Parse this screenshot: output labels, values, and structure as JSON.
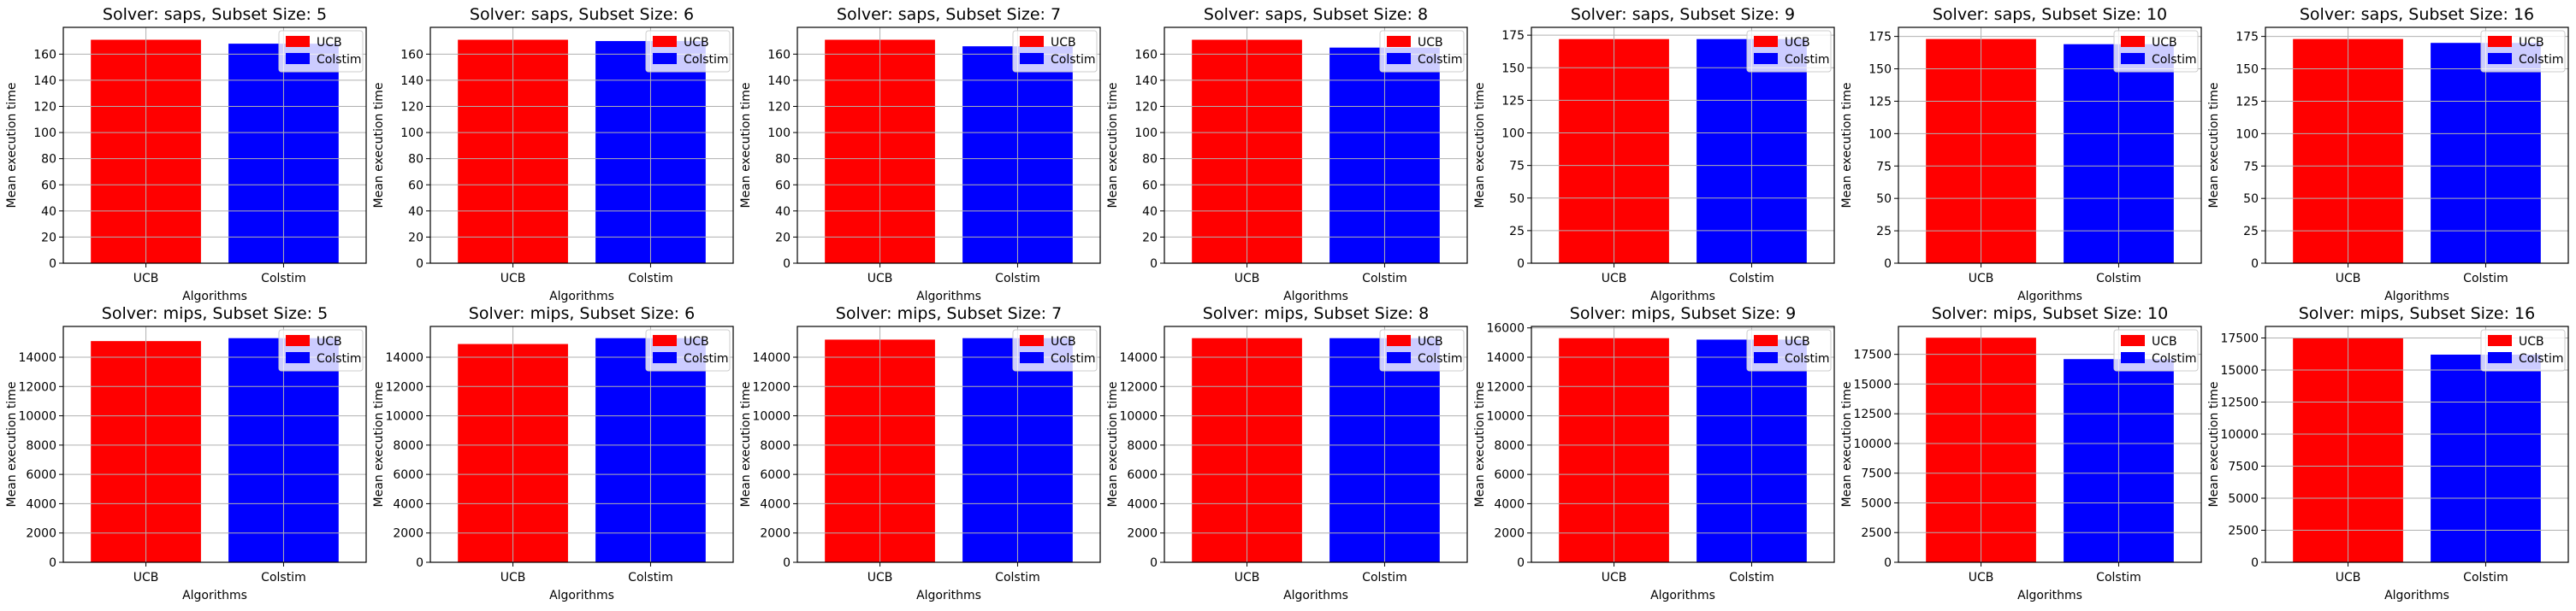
{
  "colors": {
    "UCB": "#ff0000",
    "Colstim": "#0000ff",
    "grid": "#b0b0b0"
  },
  "chart_data": [
    {
      "type": "bar",
      "title": "Solver: saps, Subset Size: 5",
      "xlabel": "Algorithms",
      "ylabel": "Mean execution time",
      "categories": [
        "UCB",
        "Colstim"
      ],
      "values": [
        171,
        168
      ],
      "ylim": [
        0,
        180.5
      ],
      "yticks": [
        0,
        20,
        40,
        60,
        80,
        100,
        120,
        140,
        160
      ],
      "legend": {
        "entries": [
          "UCB",
          "Colstim"
        ],
        "loc": "upper right"
      },
      "grid": true
    },
    {
      "type": "bar",
      "title": "Solver: saps, Subset Size: 6",
      "xlabel": "Algorithms",
      "ylabel": "Mean execution time",
      "categories": [
        "UCB",
        "Colstim"
      ],
      "values": [
        171,
        170
      ],
      "ylim": [
        0,
        180.5
      ],
      "yticks": [
        0,
        20,
        40,
        60,
        80,
        100,
        120,
        140,
        160
      ],
      "legend": {
        "entries": [
          "UCB",
          "Colstim"
        ],
        "loc": "upper right"
      },
      "grid": true
    },
    {
      "type": "bar",
      "title": "Solver: saps, Subset Size: 7",
      "xlabel": "Algorithms",
      "ylabel": "Mean execution time",
      "categories": [
        "UCB",
        "Colstim"
      ],
      "values": [
        171,
        166
      ],
      "ylim": [
        0,
        180.5
      ],
      "yticks": [
        0,
        20,
        40,
        60,
        80,
        100,
        120,
        140,
        160
      ],
      "legend": {
        "entries": [
          "UCB",
          "Colstim"
        ],
        "loc": "upper right"
      },
      "grid": true
    },
    {
      "type": "bar",
      "title": "Solver: saps, Subset Size: 8",
      "xlabel": "Algorithms",
      "ylabel": "Mean execution time",
      "categories": [
        "UCB",
        "Colstim"
      ],
      "values": [
        171,
        165
      ],
      "ylim": [
        0,
        180.5
      ],
      "yticks": [
        0,
        20,
        40,
        60,
        80,
        100,
        120,
        140,
        160
      ],
      "legend": {
        "entries": [
          "UCB",
          "Colstim"
        ],
        "loc": "upper right"
      },
      "grid": true
    },
    {
      "type": "bar",
      "title": "Solver: saps, Subset Size: 9",
      "xlabel": "Algorithms",
      "ylabel": "Mean execution time",
      "categories": [
        "UCB",
        "Colstim"
      ],
      "values": [
        172,
        172
      ],
      "ylim": [
        0,
        181
      ],
      "yticks": [
        0,
        25,
        50,
        75,
        100,
        125,
        150,
        175
      ],
      "legend": {
        "entries": [
          "UCB",
          "Colstim"
        ],
        "loc": "upper right"
      },
      "grid": true
    },
    {
      "type": "bar",
      "title": "Solver: saps, Subset Size: 10",
      "xlabel": "Algorithms",
      "ylabel": "Mean execution time",
      "categories": [
        "UCB",
        "Colstim"
      ],
      "values": [
        173,
        169
      ],
      "ylim": [
        0,
        182
      ],
      "yticks": [
        0,
        25,
        50,
        75,
        100,
        125,
        150,
        175
      ],
      "legend": {
        "entries": [
          "UCB",
          "Colstim"
        ],
        "loc": "upper right"
      },
      "grid": true
    },
    {
      "type": "bar",
      "title": "Solver: saps, Subset Size: 16",
      "xlabel": "Algorithms",
      "ylabel": "Mean execution time",
      "categories": [
        "UCB",
        "Colstim"
      ],
      "values": [
        173,
        170
      ],
      "ylim": [
        0,
        182
      ],
      "yticks": [
        0,
        25,
        50,
        75,
        100,
        125,
        150,
        175
      ],
      "legend": {
        "entries": [
          "UCB",
          "Colstim"
        ],
        "loc": "upper right"
      },
      "grid": true
    },
    {
      "type": "bar",
      "title": "Solver: mips, Subset Size: 5",
      "xlabel": "Algorithms",
      "ylabel": "Mean execution time",
      "categories": [
        "UCB",
        "Colstim"
      ],
      "values": [
        15100,
        15300
      ],
      "ylim": [
        0,
        16100
      ],
      "yticks": [
        0,
        2000,
        4000,
        6000,
        8000,
        10000,
        12000,
        14000
      ],
      "legend": {
        "entries": [
          "UCB",
          "Colstim"
        ],
        "loc": "upper right"
      },
      "grid": true
    },
    {
      "type": "bar",
      "title": "Solver: mips, Subset Size: 6",
      "xlabel": "Algorithms",
      "ylabel": "Mean execution time",
      "categories": [
        "UCB",
        "Colstim"
      ],
      "values": [
        14900,
        15300
      ],
      "ylim": [
        0,
        16100
      ],
      "yticks": [
        0,
        2000,
        4000,
        6000,
        8000,
        10000,
        12000,
        14000
      ],
      "legend": {
        "entries": [
          "UCB",
          "Colstim"
        ],
        "loc": "upper right"
      },
      "grid": true
    },
    {
      "type": "bar",
      "title": "Solver: mips, Subset Size: 7",
      "xlabel": "Algorithms",
      "ylabel": "Mean execution time",
      "categories": [
        "UCB",
        "Colstim"
      ],
      "values": [
        15200,
        15300
      ],
      "ylim": [
        0,
        16100
      ],
      "yticks": [
        0,
        2000,
        4000,
        6000,
        8000,
        10000,
        12000,
        14000
      ],
      "legend": {
        "entries": [
          "UCB",
          "Colstim"
        ],
        "loc": "upper right"
      },
      "grid": true
    },
    {
      "type": "bar",
      "title": "Solver: mips, Subset Size: 8",
      "xlabel": "Algorithms",
      "ylabel": "Mean execution time",
      "categories": [
        "UCB",
        "Colstim"
      ],
      "values": [
        15300,
        15300
      ],
      "ylim": [
        0,
        16100
      ],
      "yticks": [
        0,
        2000,
        4000,
        6000,
        8000,
        10000,
        12000,
        14000
      ],
      "legend": {
        "entries": [
          "UCB",
          "Colstim"
        ],
        "loc": "upper right"
      },
      "grid": true
    },
    {
      "type": "bar",
      "title": "Solver: mips, Subset Size: 9",
      "xlabel": "Algorithms",
      "ylabel": "Mean execution time",
      "categories": [
        "UCB",
        "Colstim"
      ],
      "values": [
        15300,
        15200
      ],
      "ylim": [
        0,
        16100
      ],
      "yticks": [
        0,
        2000,
        4000,
        6000,
        8000,
        10000,
        12000,
        14000,
        16000
      ],
      "legend": {
        "entries": [
          "UCB",
          "Colstim"
        ],
        "loc": "upper right"
      },
      "grid": true
    },
    {
      "type": "bar",
      "title": "Solver: mips, Subset Size: 10",
      "xlabel": "Algorithms",
      "ylabel": "Mean execution time",
      "categories": [
        "UCB",
        "Colstim"
      ],
      "values": [
        18900,
        17100
      ],
      "ylim": [
        0,
        19850
      ],
      "yticks": [
        0,
        2500,
        5000,
        7500,
        10000,
        12500,
        15000,
        17500
      ],
      "legend": {
        "entries": [
          "UCB",
          "Colstim"
        ],
        "loc": "upper right"
      },
      "grid": true
    },
    {
      "type": "bar",
      "title": "Solver: mips, Subset Size: 16",
      "xlabel": "Algorithms",
      "ylabel": "Mean execution time",
      "categories": [
        "UCB",
        "Colstim"
      ],
      "values": [
        17500,
        16200
      ],
      "ylim": [
        0,
        18400
      ],
      "yticks": [
        0,
        2500,
        5000,
        7500,
        10000,
        12500,
        15000,
        17500
      ],
      "legend": {
        "entries": [
          "UCB",
          "Colstim"
        ],
        "loc": "upper right"
      },
      "grid": true
    }
  ]
}
